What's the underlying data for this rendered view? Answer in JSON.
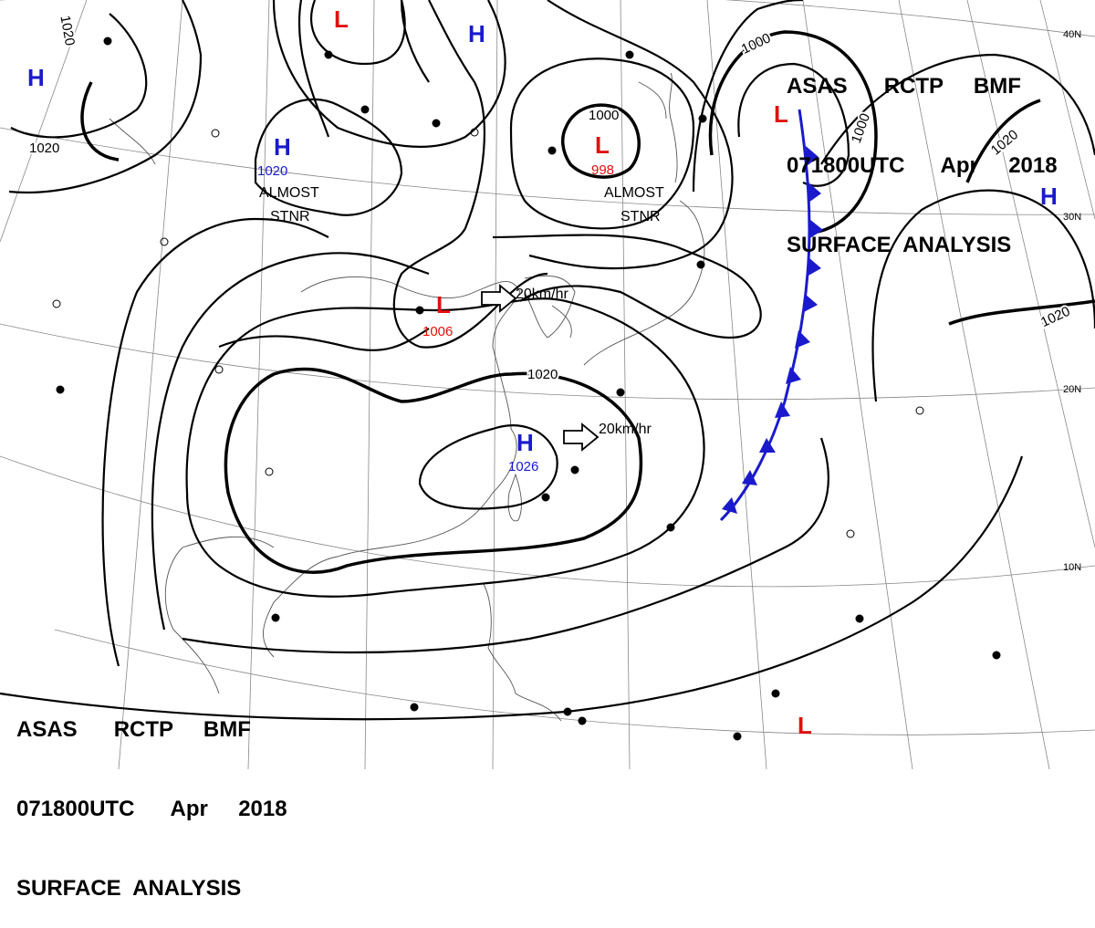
{
  "header": {
    "line1": "ASAS      RCTP     BMF",
    "line2": "071800UTC      Apr     2018",
    "line3": "SURFACE  ANALYSIS"
  },
  "colors": {
    "high": "#1a1acc",
    "low": "#e01010",
    "front": "#1a1acc",
    "isobar": "#000000",
    "grid": "#888888"
  },
  "latitude_labels": [
    "40N",
    "30N",
    "20N",
    "10N"
  ],
  "pressure_centers": [
    {
      "id": "high-northwest-1",
      "type": "H",
      "value": ""
    },
    {
      "id": "low-north",
      "type": "L",
      "value": ""
    },
    {
      "id": "high-north",
      "type": "H",
      "value": ""
    },
    {
      "id": "high-mongolia",
      "type": "H",
      "value": "1020"
    },
    {
      "id": "low-manchuria",
      "type": "L",
      "value": "998"
    },
    {
      "id": "low-northeast",
      "type": "L",
      "value": ""
    },
    {
      "id": "high-pacific",
      "type": "H",
      "value": ""
    },
    {
      "id": "low-yellow-sea",
      "type": "L",
      "value": "1006"
    },
    {
      "id": "high-china",
      "type": "H",
      "value": "1026"
    },
    {
      "id": "low-pacific-south",
      "type": "L",
      "value": ""
    }
  ],
  "isobar_labels": [
    "1020",
    "1020",
    "1000",
    "1000",
    "1000",
    "1020",
    "1020",
    "1020"
  ],
  "system_notes": [
    {
      "id": "almost-stnr-west",
      "line1": "ALMOST",
      "line2": "STNR"
    },
    {
      "id": "almost-stnr-east",
      "line1": "ALMOST",
      "line2": "STNR"
    }
  ],
  "motion_labels": [
    "20km/hr",
    "20km/hr"
  ]
}
